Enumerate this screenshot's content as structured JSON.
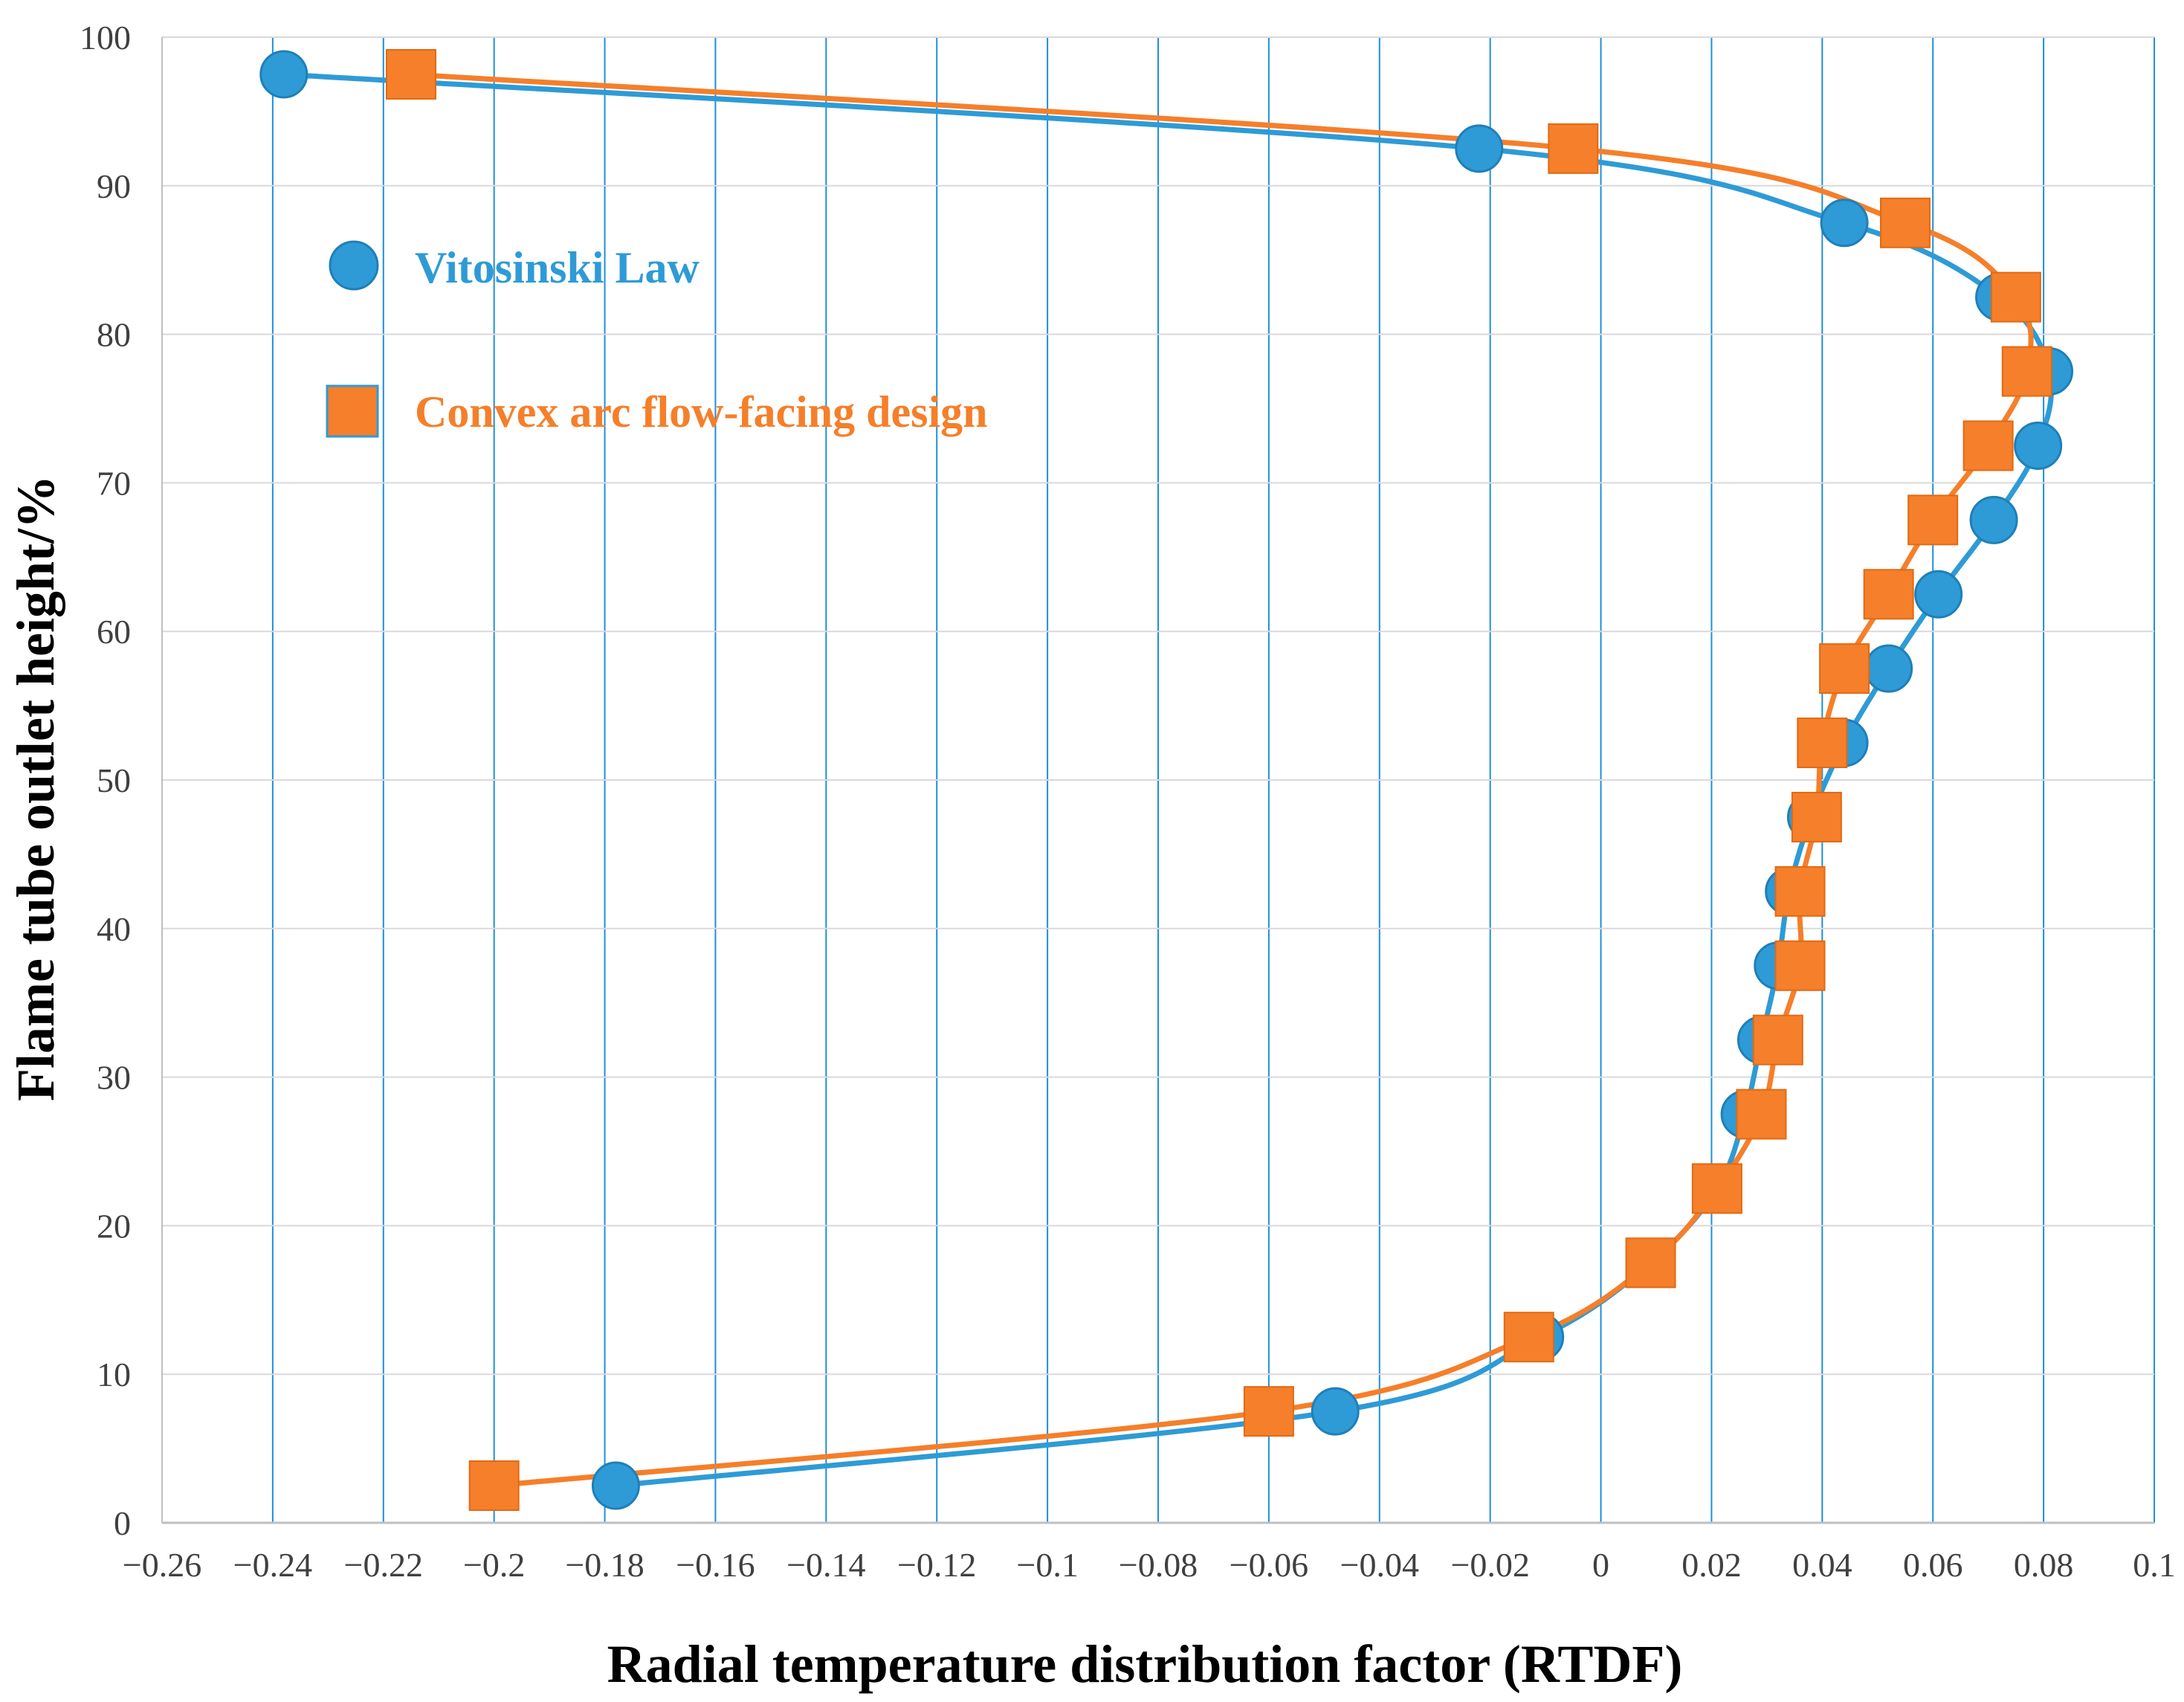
{
  "chart_data": {
    "type": "line",
    "xlabel": "Radial temperature distribution factor (RTDF)",
    "ylabel": "Flame tube outlet height/%",
    "xlim": [
      -0.26,
      0.1
    ],
    "ylim": [
      0,
      100
    ],
    "x_ticks": [
      -0.26,
      -0.24,
      -0.22,
      -0.2,
      -0.18,
      -0.16,
      -0.14,
      -0.12,
      -0.1,
      -0.08,
      -0.06,
      -0.04,
      -0.02,
      0,
      0.02,
      0.04,
      0.06,
      0.08,
      0.1
    ],
    "x_tick_labels": [
      "−0.26",
      "−0.24",
      "−0.22",
      "−0.2",
      "−0.18",
      "−0.16",
      "−0.14",
      "−0.12",
      "−0.1",
      "−0.08",
      "−0.06",
      "−0.04",
      "−0.02",
      "0",
      "0.02",
      "0.04",
      "0.06",
      "0.08",
      "0.1"
    ],
    "y_ticks": [
      0,
      10,
      20,
      30,
      40,
      50,
      60,
      70,
      80,
      90,
      100
    ],
    "y_tick_labels": [
      "0",
      "10",
      "20",
      "30",
      "40",
      "50",
      "60",
      "70",
      "80",
      "90",
      "100"
    ],
    "vertical_grid": true,
    "horizontal_grid": true,
    "legend_position": "upper-left",
    "series": [
      {
        "name": "Vitosinski Law",
        "color": "#2e9bd6",
        "marker": "circle",
        "x": [
          -0.178,
          -0.048,
          -0.011,
          0.009,
          0.021,
          0.026,
          0.029,
          0.032,
          0.034,
          0.038,
          0.044,
          0.052,
          0.061,
          0.071,
          0.079,
          0.081,
          0.072,
          0.044,
          -0.022,
          -0.238
        ],
        "y": [
          2.5,
          7.5,
          12.5,
          17.5,
          22.5,
          27.5,
          32.5,
          37.5,
          42.5,
          47.5,
          52.5,
          57.5,
          62.5,
          67.5,
          72.5,
          77.5,
          82.5,
          87.5,
          92.5,
          97.5
        ]
      },
      {
        "name": "Convex arc flow-facing design",
        "color": "#f57f2a",
        "marker": "square",
        "x": [
          -0.2,
          -0.06,
          -0.013,
          0.009,
          0.021,
          0.029,
          0.032,
          0.036,
          0.036,
          0.039,
          0.04,
          0.044,
          0.052,
          0.06,
          0.07,
          0.077,
          0.075,
          0.055,
          -0.005,
          -0.215
        ],
        "y": [
          2.5,
          7.5,
          12.5,
          17.5,
          22.5,
          27.5,
          32.5,
          37.5,
          42.5,
          47.5,
          52.5,
          57.5,
          62.5,
          67.5,
          72.5,
          77.5,
          82.5,
          87.5,
          92.5,
          97.5
        ]
      }
    ]
  }
}
